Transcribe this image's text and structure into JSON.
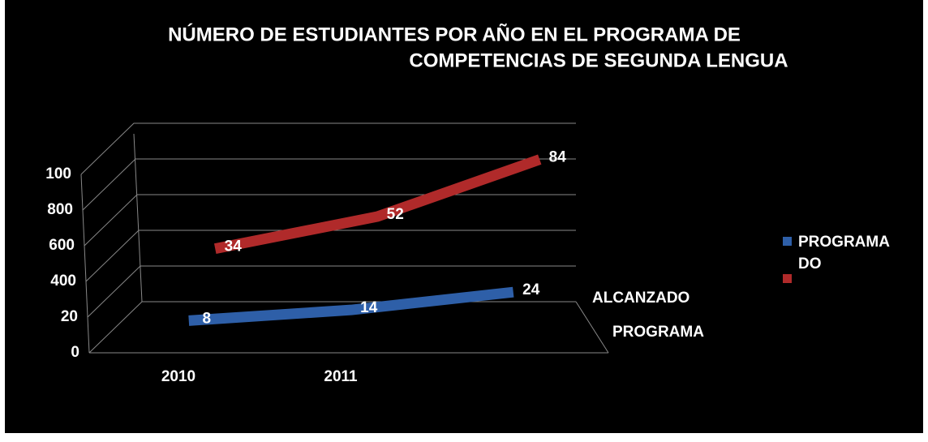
{
  "chart_data": {
    "type": "line",
    "title": [
      "NÚMERO DE ESTUDIANTES POR AÑO EN EL PROGRAMA DE",
      "COMPETENCIAS DE SEGUNDA LENGUA"
    ],
    "categories": [
      "2010",
      "2011",
      null
    ],
    "series": [
      {
        "name": "PROGRAMA",
        "color": "#2e5fa8",
        "values": [
          8,
          14,
          24
        ]
      },
      {
        "name": "DO",
        "color": "#b02a2a",
        "values": [
          34,
          52,
          84
        ]
      }
    ],
    "depth_labels": [
      "ALCANZADO",
      "PROGRAMA"
    ],
    "ylim": [
      0,
      100
    ],
    "yticks": [
      0,
      20,
      {
        "value": 40,
        "label": "400"
      },
      {
        "value": 60,
        "label": "600"
      },
      {
        "value": 80,
        "label": "800"
      },
      100
    ],
    "grid": true,
    "legend": "right"
  }
}
